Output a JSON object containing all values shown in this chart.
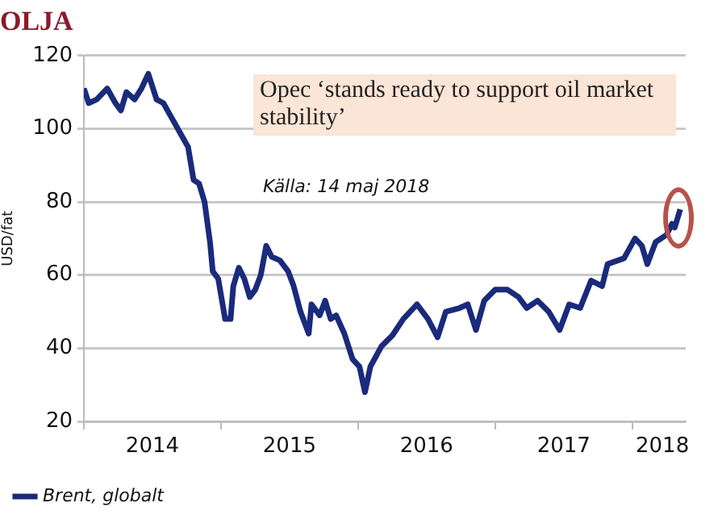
{
  "chart_data": {
    "type": "line",
    "title": "OLJA",
    "ylabel": "USD/fat",
    "annotations": [
      "Opec ‘stands ready to support oil market stability’",
      "Källa: 14 maj 2018"
    ],
    "xlim": [
      2014,
      2018.39
    ],
    "xticks": [
      {
        "value": 2014,
        "label": null
      },
      {
        "value": 2014.5,
        "label": "2014"
      },
      {
        "value": 2015,
        "label": null
      },
      {
        "value": 2015.5,
        "label": "2015"
      },
      {
        "value": 2016,
        "label": null
      },
      {
        "value": 2016.5,
        "label": "2016"
      },
      {
        "value": 2017,
        "label": null
      },
      {
        "value": 2017.5,
        "label": "2017"
      },
      {
        "value": 2018,
        "label": null
      },
      {
        "value": 2018.22,
        "label": "2018"
      }
    ],
    "ylim": [
      20,
      120
    ],
    "yticks": [
      20,
      40,
      60,
      80,
      100,
      120
    ],
    "grid": "y",
    "legend": "bottom left",
    "series": [
      {
        "name": "Brent, globalt",
        "color": "#1a2a7c",
        "x": [
          2014.0,
          2014.035,
          2014.094,
          2014.17,
          2014.23,
          2014.27,
          2014.31,
          2014.37,
          2014.42,
          2014.47,
          2014.53,
          2014.58,
          2014.64,
          2014.7,
          2014.76,
          2014.8,
          2014.84,
          2014.88,
          2014.92,
          2014.94,
          2014.98,
          2015.03,
          2015.07,
          2015.09,
          2015.13,
          2015.17,
          2015.21,
          2015.25,
          2015.29,
          2015.33,
          2015.37,
          2015.43,
          2015.49,
          2015.53,
          2015.58,
          2015.64,
          2015.66,
          2015.72,
          2015.76,
          2015.8,
          2015.84,
          2015.9,
          2015.96,
          2016.01,
          2016.05,
          2016.09,
          2016.17,
          2016.25,
          2016.33,
          2016.43,
          2016.51,
          2016.58,
          2016.64,
          2016.74,
          2016.8,
          2016.86,
          2016.92,
          2017.0,
          2017.09,
          2017.17,
          2017.23,
          2017.31,
          2017.39,
          2017.47,
          2017.54,
          2017.62,
          2017.7,
          2017.78,
          2017.82,
          2017.94,
          2018.02,
          2018.07,
          2018.11,
          2018.17,
          2018.25,
          2018.29,
          2018.31,
          2018.35
        ],
        "values": [
          111,
          107,
          108,
          111,
          107,
          105,
          110,
          108,
          111,
          115,
          108,
          107,
          103,
          99,
          95,
          86,
          85,
          80,
          69,
          61,
          59,
          48,
          48,
          57,
          62,
          59,
          54,
          56,
          60,
          68,
          65,
          64,
          61,
          57,
          50,
          44,
          52,
          49,
          53,
          48,
          49,
          44,
          37,
          35,
          28,
          35,
          40.5,
          43.5,
          48,
          52,
          48,
          43,
          50,
          51,
          52,
          45,
          53,
          56,
          56,
          54,
          51,
          53,
          50,
          45,
          52,
          51,
          58.5,
          57,
          63,
          64.6,
          70,
          68,
          63,
          69,
          71,
          74,
          73,
          78
        ]
      }
    ]
  }
}
